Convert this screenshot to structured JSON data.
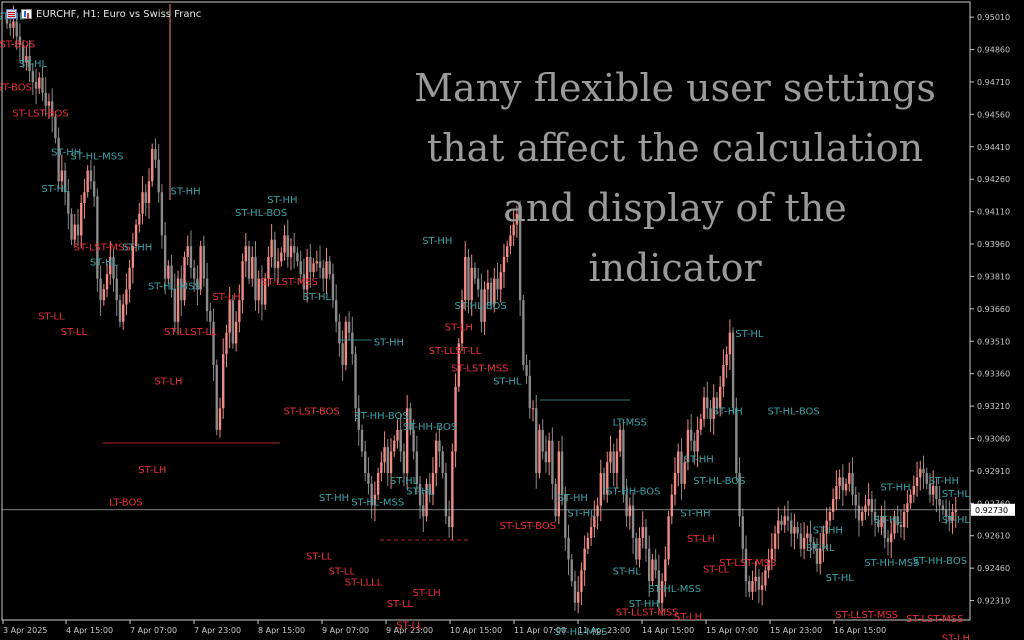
{
  "header": {
    "title": "EURCHF, H1:  Euro vs Swiss Franc",
    "icons": [
      "menu-icon",
      "one-click-trading-icon"
    ]
  },
  "overlay": {
    "lines": [
      "Many flexible user settings",
      "that affect the calculation",
      "and display of the",
      "indicator"
    ]
  },
  "colors": {
    "bg": "#000000",
    "bull": "#ef8a84",
    "bear": "#8a8a8a",
    "label_teal": "#3aa2a6",
    "label_red": "#e8303c",
    "axis": "#c8c8c8",
    "grid_text": "#c8c8c8"
  },
  "chart_data": {
    "type": "candlestick",
    "symbol": "EURCHF",
    "timeframe": "H1",
    "ylim": [
      0.9222,
      0.9508
    ],
    "y_ticks": [
      "0.95010",
      "0.94860",
      "0.94710",
      "0.94560",
      "0.94410",
      "0.94260",
      "0.94110",
      "0.93960",
      "0.93810",
      "0.93660",
      "0.93510",
      "0.93360",
      "0.93210",
      "0.93060",
      "0.92910",
      "0.92760",
      "0.92610",
      "0.92460",
      "0.92310"
    ],
    "x_ticks": [
      "3 Apr 2025",
      "4 Apr 15:00",
      "7 Apr 07:00",
      "7 Apr 23:00",
      "8 Apr 15:00",
      "9 Apr 07:00",
      "9 Apr 23:00",
      "10 Apr 15:00",
      "11 Apr 07:00",
      "11 Apr 23:00",
      "14 Apr 15:00",
      "15 Apr 07:00",
      "15 Apr 23:00",
      "16 Apr 15:00"
    ],
    "current_price": "0.92730",
    "closes": [
      0.9498,
      0.9496,
      0.9499,
      0.9492,
      0.9488,
      0.948,
      0.9483,
      0.9476,
      0.9471,
      0.9468,
      0.9473,
      0.9466,
      0.946,
      0.9462,
      0.9455,
      0.9445,
      0.9425,
      0.943,
      0.942,
      0.941,
      0.9398,
      0.9405,
      0.94,
      0.9415,
      0.942,
      0.943,
      0.9425,
      0.9418,
      0.938,
      0.937,
      0.9375,
      0.9382,
      0.939,
      0.938,
      0.937,
      0.936,
      0.9368,
      0.9375,
      0.9385,
      0.9395,
      0.9405,
      0.941,
      0.942,
      0.9415,
      0.9425,
      0.944,
      0.9435,
      0.942,
      0.94,
      0.938,
      0.9386,
      0.9375,
      0.936,
      0.938,
      0.937,
      0.939,
      0.9395,
      0.9385,
      0.938,
      0.9375,
      0.9395,
      0.938,
      0.9365,
      0.936,
      0.934,
      0.931,
      0.932,
      0.9345,
      0.9355,
      0.937,
      0.935,
      0.936,
      0.937,
      0.9388,
      0.9395,
      0.938,
      0.939,
      0.937,
      0.938,
      0.9368,
      0.938,
      0.939,
      0.9398,
      0.9385,
      0.9388,
      0.9392,
      0.94,
      0.939,
      0.9395,
      0.9392,
      0.9388,
      0.9382,
      0.9375,
      0.939,
      0.9383,
      0.9387,
      0.9388,
      0.9385,
      0.938,
      0.9388,
      0.9382,
      0.937,
      0.936,
      0.935,
      0.934,
      0.936,
      0.9355,
      0.9345,
      0.932,
      0.931,
      0.93,
      0.929,
      0.9285,
      0.9275,
      0.928,
      0.929,
      0.9295,
      0.9302,
      0.929,
      0.93,
      0.9305,
      0.931,
      0.93,
      0.929,
      0.932,
      0.931,
      0.93,
      0.9285,
      0.9275,
      0.927,
      0.9285,
      0.928,
      0.929,
      0.9305,
      0.93,
      0.929,
      0.927,
      0.9265,
      0.93,
      0.933,
      0.935,
      0.937,
      0.939,
      0.937,
      0.9385,
      0.938,
      0.9375,
      0.936,
      0.9375,
      0.9378,
      0.9368,
      0.938,
      0.9375,
      0.9383,
      0.939,
      0.9395,
      0.94,
      0.9405,
      0.941,
      0.937,
      0.934,
      0.9335,
      0.932,
      0.932,
      0.929,
      0.931,
      0.93,
      0.9295,
      0.9305,
      0.9285,
      0.927,
      0.93,
      0.928,
      0.926,
      0.925,
      0.924,
      0.923,
      0.9235,
      0.9245,
      0.9255,
      0.926,
      0.9265,
      0.927,
      0.9275,
      0.929,
      0.928,
      0.9295,
      0.93,
      0.929,
      0.93,
      0.931,
      0.928,
      0.927,
      0.9275,
      0.926,
      0.925,
      0.926,
      0.9265,
      0.9255,
      0.924,
      0.925,
      0.9245,
      0.923,
      0.924,
      0.925,
      0.927,
      0.928,
      0.929,
      0.93,
      0.9285,
      0.9295,
      0.931,
      0.9305,
      0.93,
      0.931,
      0.9315,
      0.9325,
      0.932,
      0.9315,
      0.9325,
      0.932,
      0.933,
      0.934,
      0.9345,
      0.9355,
      0.932,
      0.929,
      0.927,
      0.9255,
      0.924,
      0.9235,
      0.924,
      0.9242,
      0.9236,
      0.9238,
      0.9245,
      0.925,
      0.9255,
      0.9262,
      0.9268,
      0.9266,
      0.927,
      0.9268,
      0.9262,
      0.9265,
      0.9262,
      0.9255,
      0.926,
      0.9262,
      0.9258,
      0.9255,
      0.9248,
      0.9255,
      0.9262,
      0.9268,
      0.9272,
      0.9278,
      0.9284,
      0.9288,
      0.9282,
      0.9285,
      0.929,
      0.928,
      0.9275,
      0.9268,
      0.9272,
      0.9275,
      0.9278,
      0.9272,
      0.9268,
      0.9265,
      0.927,
      0.926,
      0.9258,
      0.9262,
      0.927,
      0.9266,
      0.9265,
      0.9272,
      0.9276,
      0.928,
      0.9284,
      0.9288,
      0.9292,
      0.929,
      0.9285,
      0.928,
      0.9284,
      0.9278,
      0.9275,
      0.9273,
      0.927,
      0.9268,
      0.9272,
      0.9273
    ],
    "labels": [
      {
        "t": "ST-HL",
        "c": "teal",
        "i": 1,
        "p": 0.95
      },
      {
        "t": "ST-BOS",
        "c": "red",
        "i": 2,
        "p": 0.9487
      },
      {
        "t": "ST-HL",
        "c": "teal",
        "i": 8,
        "p": 0.9478
      },
      {
        "t": "ST-BOS",
        "c": "red",
        "i": 1,
        "p": 0.9467
      },
      {
        "t": "ST-LST-BOS",
        "c": "red",
        "i": 6,
        "p": 0.9455
      },
      {
        "t": "ST-HH",
        "c": "teal",
        "i": 18,
        "p": 0.9437
      },
      {
        "t": "ST-HL-MSS",
        "c": "teal",
        "i": 24,
        "p": 0.9435
      },
      {
        "t": "ST-HL",
        "c": "teal",
        "i": 15,
        "p": 0.942
      },
      {
        "t": "ST-HH",
        "c": "teal",
        "i": 55,
        "p": 0.9419
      },
      {
        "t": "ST-HH",
        "c": "teal",
        "i": 85,
        "p": 0.9415
      },
      {
        "t": "ST-HL-BOS",
        "c": "teal",
        "i": 75,
        "p": 0.9409
      },
      {
        "t": "ST-LST-MSS",
        "c": "red",
        "i": 25,
        "p": 0.9393
      },
      {
        "t": "ST-HH",
        "c": "teal",
        "i": 40,
        "p": 0.9393
      },
      {
        "t": "ST-HL",
        "c": "teal",
        "i": 30,
        "p": 0.9386
      },
      {
        "t": "ST-HH",
        "c": "teal",
        "i": 133,
        "p": 0.9396
      },
      {
        "t": "ST-LST-MSS",
        "c": "red",
        "i": 83,
        "p": 0.9377
      },
      {
        "t": "ST-HL-MSS",
        "c": "teal",
        "i": 48,
        "p": 0.9375
      },
      {
        "t": "ST-LH",
        "c": "red",
        "i": 68,
        "p": 0.937
      },
      {
        "t": "ST-HL",
        "c": "teal",
        "i": 96,
        "p": 0.937
      },
      {
        "t": "ST-HL-BOS",
        "c": "teal",
        "i": 143,
        "p": 0.9366
      },
      {
        "t": "ST-LL",
        "c": "red",
        "i": 14,
        "p": 0.9361
      },
      {
        "t": "ST-LL",
        "c": "red",
        "i": 21,
        "p": 0.9354
      },
      {
        "t": "ST-LLST-LL",
        "c": "red",
        "i": 53,
        "p": 0.9354
      },
      {
        "t": "ST-LH",
        "c": "red",
        "i": 140,
        "p": 0.9356
      },
      {
        "t": "ST-HL",
        "c": "teal",
        "i": 230,
        "p": 0.9353
      },
      {
        "t": "ST-HH",
        "c": "teal",
        "i": 118,
        "p": 0.9349
      },
      {
        "t": "ST-LLST-LL",
        "c": "red",
        "i": 135,
        "p": 0.9345
      },
      {
        "t": "ST-LST-MSS",
        "c": "red",
        "i": 142,
        "p": 0.9337
      },
      {
        "t": "ST-HL",
        "c": "teal",
        "i": 155,
        "p": 0.9331
      },
      {
        "t": "ST-LH",
        "c": "red",
        "i": 50,
        "p": 0.9331
      },
      {
        "t": "ST-HH",
        "c": "teal",
        "i": 223,
        "p": 0.9317
      },
      {
        "t": "ST-HL-BOS",
        "c": "teal",
        "i": 240,
        "p": 0.9317
      },
      {
        "t": "ST-LST-BOS",
        "c": "red",
        "i": 90,
        "p": 0.9317
      },
      {
        "t": "ST-HH-BOS",
        "c": "teal",
        "i": 112,
        "p": 0.9315
      },
      {
        "t": "ST-HH-BOS",
        "c": "teal",
        "i": 127,
        "p": 0.931
      },
      {
        "t": "LT-MSS",
        "c": "teal",
        "i": 192,
        "p": 0.9312
      },
      {
        "t": "ST-HH",
        "c": "teal",
        "i": 214,
        "p": 0.9295
      },
      {
        "t": "ST-LH",
        "c": "red",
        "i": 45,
        "p": 0.929
      },
      {
        "t": "ST-HL-BOS",
        "c": "teal",
        "i": 217,
        "p": 0.9285
      },
      {
        "t": "ST-HL",
        "c": "teal",
        "i": 123,
        "p": 0.9285
      },
      {
        "t": "ST-HL",
        "c": "teal",
        "i": 128,
        "p": 0.928
      },
      {
        "t": "ST-HH-BOS",
        "c": "teal",
        "i": 190,
        "p": 0.928
      },
      {
        "t": "ST-HH",
        "c": "teal",
        "i": 175,
        "p": 0.9277
      },
      {
        "t": "ST-HH",
        "c": "teal",
        "i": 275,
        "p": 0.9282
      },
      {
        "t": "ST-HH",
        "c": "teal",
        "i": 290,
        "p": 0.9285
      },
      {
        "t": "ST-HL",
        "c": "teal",
        "i": 298,
        "p": 0.9279
      },
      {
        "t": "ST-HH",
        "c": "teal",
        "i": 101,
        "p": 0.9277
      },
      {
        "t": "LT-BOS",
        "c": "red",
        "i": 36,
        "p": 0.9275
      },
      {
        "t": "ST-HL-MSS",
        "c": "teal",
        "i": 111,
        "p": 0.9275
      },
      {
        "t": "ST-HH",
        "c": "teal",
        "i": 213,
        "p": 0.927
      },
      {
        "t": "ST-HL",
        "c": "teal",
        "i": 178,
        "p": 0.927
      },
      {
        "t": "ST-HL",
        "c": "teal",
        "i": 273,
        "p": 0.9267
      },
      {
        "t": "ST-HL",
        "c": "teal",
        "i": 303,
        "p": 0.9267
      },
      {
        "t": "ST-HH",
        "c": "teal",
        "i": 254,
        "p": 0.9262
      },
      {
        "t": "ST-LST-BOS",
        "c": "red",
        "i": 157,
        "p": 0.9264
      },
      {
        "t": "ST-HL",
        "c": "teal",
        "i": 252,
        "p": 0.9254
      },
      {
        "t": "ST-LH",
        "c": "red",
        "i": 215,
        "p": 0.9258
      },
      {
        "t": "ST-HH-MSS",
        "c": "teal",
        "i": 270,
        "p": 0.9247
      },
      {
        "t": "ST-HH-BOS",
        "c": "teal",
        "i": 285,
        "p": 0.9248
      },
      {
        "t": "ST-LL",
        "c": "red",
        "i": 97,
        "p": 0.925
      },
      {
        "t": "ST-LST-MSS",
        "c": "red",
        "i": 225,
        "p": 0.9247
      },
      {
        "t": "ST-LL",
        "c": "red",
        "i": 220,
        "p": 0.9244
      },
      {
        "t": "ST-LL",
        "c": "red",
        "i": 104,
        "p": 0.9243
      },
      {
        "t": "ST-LLLL",
        "c": "red",
        "i": 109,
        "p": 0.9238
      },
      {
        "t": "ST-HL",
        "c": "teal",
        "i": 192,
        "p": 0.9243
      },
      {
        "t": "ST-HL",
        "c": "teal",
        "i": 258,
        "p": 0.924
      },
      {
        "t": "ST-HL-MSS",
        "c": "teal",
        "i": 203,
        "p": 0.9235
      },
      {
        "t": "ST-LH",
        "c": "red",
        "i": 130,
        "p": 0.9233
      },
      {
        "t": "ST-LL",
        "c": "red",
        "i": 122,
        "p": 0.9228
      },
      {
        "t": "ST-HH",
        "c": "teal",
        "i": 197,
        "p": 0.9228
      },
      {
        "t": "ST-LLST-MSS",
        "c": "red",
        "i": 193,
        "p": 0.9224
      },
      {
        "t": "ST-LH",
        "c": "red",
        "i": 211,
        "p": 0.9222
      },
      {
        "t": "ST-LLST-MSS",
        "c": "red",
        "i": 261,
        "p": 0.9223
      },
      {
        "t": "ST-LST-MSS",
        "c": "red",
        "i": 283,
        "p": 0.9221
      },
      {
        "t": "ST-LL",
        "c": "red",
        "i": 125,
        "p": 0.9218
      },
      {
        "t": "ST-HL-MSS",
        "c": "teal",
        "i": 174,
        "p": 0.9215
      },
      {
        "t": "ST-LH",
        "c": "red",
        "i": 300,
        "p": 0.9212
      }
    ]
  }
}
